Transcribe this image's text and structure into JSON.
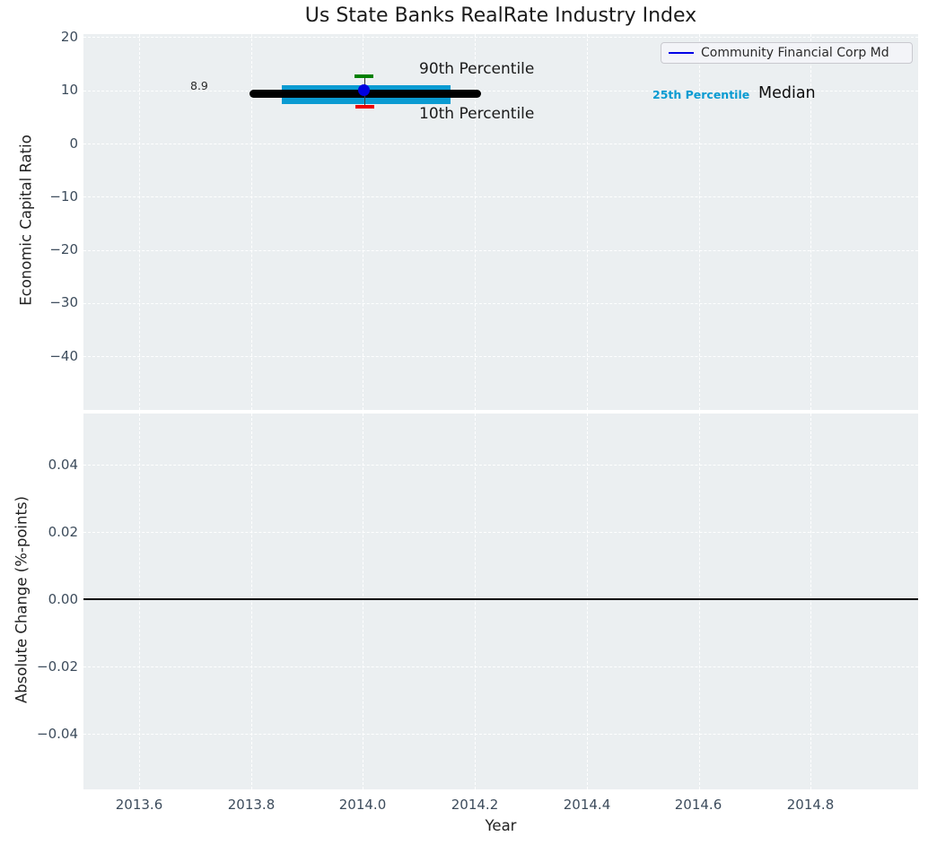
{
  "title": "Us State Banks RealRate Industry Index",
  "legend": {
    "label": "Community Financial Corp Md",
    "line_color": "#0000e6"
  },
  "top_axes": {
    "ylabel": "Economic Capital Ratio",
    "yticks": [
      "20",
      "10",
      "0",
      "−10",
      "−20",
      "−30",
      "−40"
    ],
    "annotations": {
      "p90": "90th Percentile",
      "p10": "10th Percentile",
      "median_value": "8.9",
      "p25": "25th Percentile",
      "median_label": "Median"
    }
  },
  "bottom_axes": {
    "ylabel": "Absolute Change (%-points)",
    "yticks": [
      "0.04",
      "0.02",
      "0.00",
      "−0.02",
      "−0.04"
    ]
  },
  "xaxis": {
    "label": "Year",
    "ticks": [
      "2013.6",
      "2013.8",
      "2014.0",
      "2014.2",
      "2014.4",
      "2014.6",
      "2014.8"
    ]
  },
  "colors": {
    "plot_background": "#ebeff1",
    "grid": "#ffffff",
    "median": "#000000",
    "iqr_band": "#0a9bd2",
    "p90_marker": "#008000",
    "p10_marker": "#ee0000",
    "company_marker": "#0000e0",
    "tick_text": "#3d4c5c"
  },
  "chart_data": [
    {
      "type": "scatter",
      "title": "Us State Banks RealRate Industry Index",
      "xlabel": "Year",
      "ylabel": "Economic Capital Ratio",
      "xlim": [
        2013.5,
        2015.0
      ],
      "ylim": [
        -50.8,
        20.5
      ],
      "xticks": [
        2013.6,
        2013.8,
        2014.0,
        2014.2,
        2014.4,
        2014.6,
        2014.8
      ],
      "yticks": [
        20,
        10,
        0,
        -10,
        -20,
        -30,
        -40
      ],
      "grid": "white dashed, on",
      "legend_position": "upper right",
      "series": [
        {
          "name": "Median",
          "style": "thick black line",
          "x": [
            2013.8,
            2014.21
          ],
          "y": [
            8.9,
            8.9
          ],
          "value": 8.9,
          "data_label": "8.9"
        },
        {
          "name": "25th-75th Percentile band",
          "style": "thick cyan line",
          "x": [
            2013.86,
            2014.16
          ],
          "y_low": 7.2,
          "y_high": 10.6
        },
        {
          "name": "90th Percentile",
          "style": "green errorbar cap",
          "x": 2014.0,
          "y": 12.3
        },
        {
          "name": "10th Percentile",
          "style": "red errorbar cap",
          "x": 2014.0,
          "y": 6.7
        },
        {
          "name": "Community Financial Corp Md",
          "style": "blue dot",
          "x": 2014.0,
          "y": 9.7
        }
      ],
      "annotations": [
        "90th Percentile",
        "10th Percentile",
        "8.9",
        "25th Percentile",
        "Median"
      ]
    },
    {
      "type": "line",
      "xlabel": "Year",
      "ylabel": "Absolute Change (%-points)",
      "xlim": [
        2013.5,
        2015.0
      ],
      "ylim": [
        -0.057,
        0.055
      ],
      "yticks": [
        0.04,
        0.02,
        0.0,
        -0.02,
        -0.04
      ],
      "grid": "white dashed, on",
      "series": [
        {
          "name": "zero reference line",
          "style": "solid black horizontal line",
          "y": 0.0,
          "x": [
            2013.5,
            2015.0
          ]
        }
      ]
    }
  ]
}
